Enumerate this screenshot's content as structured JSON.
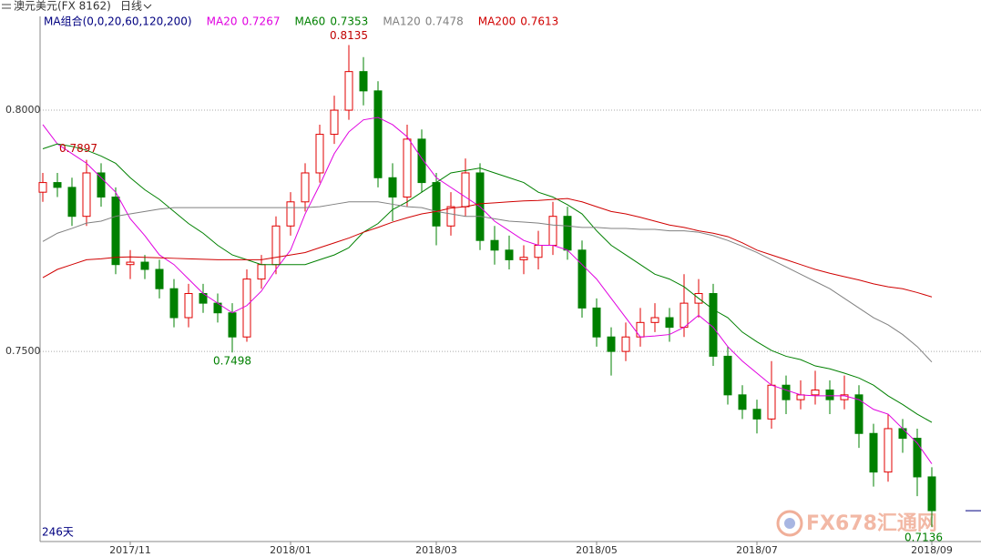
{
  "chart_data": {
    "type": "candlestick",
    "title": "澳元美元(FX 8162)",
    "period": "日线",
    "legend_title": "MA组合(0,0,20,60,120,200)",
    "bar_count_label": "246天",
    "watermark": "FX678汇通网",
    "categories": [
      null,
      null,
      null,
      null,
      null,
      null,
      "2017/11",
      null,
      null,
      null,
      null,
      null,
      null,
      null,
      null,
      null,
      null,
      "2018/01",
      null,
      null,
      null,
      null,
      null,
      null,
      null,
      null,
      null,
      "2018/03",
      null,
      null,
      null,
      null,
      null,
      null,
      null,
      null,
      null,
      null,
      "2018/05",
      null,
      null,
      null,
      null,
      null,
      null,
      null,
      null,
      null,
      null,
      "2018/07",
      null,
      null,
      null,
      null,
      null,
      null,
      null,
      null,
      null,
      null,
      null,
      "2018/09"
    ],
    "candles": {
      "up_color": "#e00000",
      "down_color": "#008000",
      "open": [
        0.783,
        0.785,
        0.784,
        0.778,
        0.787,
        0.782,
        0.768,
        0.7685,
        0.767,
        0.763,
        0.757,
        0.762,
        0.76,
        0.758,
        0.753,
        0.765,
        0.768,
        0.776,
        0.781,
        0.787,
        0.795,
        0.8,
        0.808,
        0.804,
        0.786,
        0.782,
        0.794,
        0.785,
        0.776,
        0.78,
        0.787,
        0.773,
        0.771,
        0.769,
        0.7695,
        0.772,
        0.778,
        0.771,
        0.759,
        0.753,
        0.75,
        0.753,
        0.756,
        0.757,
        0.755,
        0.76,
        0.762,
        0.749,
        0.741,
        0.738,
        0.736,
        0.743,
        0.74,
        0.741,
        0.742,
        0.74,
        0.741,
        0.733,
        0.725,
        0.734,
        0.732,
        0.724
      ],
      "high": [
        0.787,
        0.787,
        0.786,
        0.7897,
        0.789,
        0.784,
        0.771,
        0.77,
        0.769,
        0.765,
        0.764,
        0.764,
        0.762,
        0.76,
        0.767,
        0.77,
        0.778,
        0.783,
        0.789,
        0.797,
        0.803,
        0.8135,
        0.811,
        0.806,
        0.789,
        0.797,
        0.796,
        0.787,
        0.783,
        0.79,
        0.789,
        0.776,
        0.774,
        0.772,
        0.775,
        0.781,
        0.78,
        0.773,
        0.761,
        0.755,
        0.756,
        0.759,
        0.76,
        0.759,
        0.766,
        0.765,
        0.764,
        0.751,
        0.743,
        0.74,
        0.748,
        0.745,
        0.744,
        0.746,
        0.744,
        0.745,
        0.743,
        0.735,
        0.737,
        0.736,
        0.734,
        0.726
      ],
      "low": [
        0.781,
        0.782,
        0.776,
        0.776,
        0.78,
        0.766,
        0.765,
        0.765,
        0.761,
        0.755,
        0.755,
        0.758,
        0.756,
        0.7498,
        0.752,
        0.763,
        0.766,
        0.774,
        0.779,
        0.785,
        0.793,
        0.798,
        0.801,
        0.784,
        0.777,
        0.78,
        0.783,
        0.772,
        0.774,
        0.778,
        0.771,
        0.768,
        0.767,
        0.766,
        0.767,
        0.77,
        0.769,
        0.757,
        0.751,
        0.745,
        0.748,
        0.751,
        0.754,
        0.752,
        0.753,
        0.757,
        0.747,
        0.739,
        0.736,
        0.733,
        0.734,
        0.737,
        0.738,
        0.739,
        0.737,
        0.738,
        0.73,
        0.722,
        0.723,
        0.729,
        0.72,
        0.7136
      ],
      "close": [
        0.785,
        0.784,
        0.778,
        0.787,
        0.782,
        0.768,
        0.7685,
        0.767,
        0.763,
        0.757,
        0.762,
        0.76,
        0.758,
        0.753,
        0.765,
        0.768,
        0.776,
        0.781,
        0.787,
        0.795,
        0.8,
        0.808,
        0.804,
        0.786,
        0.782,
        0.794,
        0.785,
        0.776,
        0.78,
        0.787,
        0.773,
        0.771,
        0.769,
        0.7695,
        0.772,
        0.778,
        0.771,
        0.759,
        0.753,
        0.75,
        0.753,
        0.756,
        0.757,
        0.755,
        0.76,
        0.762,
        0.749,
        0.741,
        0.738,
        0.736,
        0.743,
        0.74,
        0.741,
        0.742,
        0.74,
        0.741,
        0.733,
        0.725,
        0.734,
        0.732,
        0.724,
        0.717
      ]
    },
    "series": [
      {
        "name": "MA20",
        "color": "#e000e0",
        "values": [
          0.797,
          0.793,
          0.791,
          0.789,
          0.786,
          0.783,
          0.7775,
          0.774,
          0.77,
          0.768,
          0.765,
          0.762,
          0.76,
          0.758,
          0.7595,
          0.7625,
          0.767,
          0.771,
          0.7785,
          0.7845,
          0.791,
          0.7955,
          0.798,
          0.7985,
          0.797,
          0.7945,
          0.79,
          0.786,
          0.784,
          0.782,
          0.78,
          0.777,
          0.775,
          0.773,
          0.772,
          0.772,
          0.771,
          0.768,
          0.765,
          0.761,
          0.757,
          0.753,
          0.7532,
          0.7535,
          0.755,
          0.7575,
          0.755,
          0.751,
          0.748,
          0.7455,
          0.743,
          0.742,
          0.741,
          0.7408,
          0.7408,
          0.7408,
          0.74,
          0.738,
          0.737,
          0.734,
          0.731,
          0.7267
        ]
      },
      {
        "name": "MA60",
        "color": "#008000",
        "values": [
          0.792,
          0.793,
          0.7925,
          0.7917,
          0.7905,
          0.789,
          0.786,
          0.7835,
          0.7815,
          0.779,
          0.7765,
          0.7745,
          0.772,
          0.77,
          0.769,
          0.768,
          0.768,
          0.768,
          0.768,
          0.769,
          0.77,
          0.7715,
          0.7747,
          0.7765,
          0.7794,
          0.781,
          0.783,
          0.785,
          0.787,
          0.7875,
          0.788,
          0.787,
          0.786,
          0.785,
          0.783,
          0.782,
          0.7804,
          0.7785,
          0.775,
          0.772,
          0.77,
          0.768,
          0.766,
          0.765,
          0.7634,
          0.761,
          0.7587,
          0.757,
          0.754,
          0.752,
          0.7502,
          0.749,
          0.7483,
          0.747,
          0.7464,
          0.7455,
          0.7445,
          0.743,
          0.7408,
          0.739,
          0.737,
          0.7353
        ]
      },
      {
        "name": "MA120",
        "color": "#808080",
        "values": [
          0.7728,
          0.7745,
          0.7755,
          0.7766,
          0.777,
          0.778,
          0.7785,
          0.779,
          0.7795,
          0.7798,
          0.7798,
          0.7798,
          0.7798,
          0.7798,
          0.7798,
          0.7798,
          0.7798,
          0.7798,
          0.7798,
          0.78,
          0.7805,
          0.781,
          0.781,
          0.781,
          0.7805,
          0.78,
          0.7798,
          0.779,
          0.7785,
          0.778,
          0.778,
          0.7775,
          0.777,
          0.7768,
          0.7766,
          0.7762,
          0.776,
          0.7757,
          0.7757,
          0.7755,
          0.7755,
          0.7753,
          0.7753,
          0.775,
          0.775,
          0.7747,
          0.774,
          0.773,
          0.7718,
          0.7705,
          0.769,
          0.7675,
          0.766,
          0.7645,
          0.763,
          0.761,
          0.759,
          0.757,
          0.7555,
          0.7535,
          0.751,
          0.7478
        ]
      },
      {
        "name": "MA200",
        "color": "#d00000",
        "values": [
          0.7653,
          0.767,
          0.768,
          0.769,
          0.7692,
          0.7695,
          0.7696,
          0.7695,
          0.7694,
          0.7693,
          0.7692,
          0.7691,
          0.769,
          0.769,
          0.769,
          0.769,
          0.7695,
          0.77,
          0.7705,
          0.7715,
          0.7725,
          0.7735,
          0.7747,
          0.7757,
          0.7768,
          0.7777,
          0.7785,
          0.779,
          0.7797,
          0.78,
          0.7806,
          0.7808,
          0.781,
          0.7812,
          0.7813,
          0.7815,
          0.7817,
          0.781,
          0.78,
          0.779,
          0.7785,
          0.7778,
          0.777,
          0.7762,
          0.7757,
          0.775,
          0.7745,
          0.7738,
          0.7725,
          0.771,
          0.77,
          0.769,
          0.768,
          0.767,
          0.7662,
          0.7655,
          0.7648,
          0.764,
          0.7634,
          0.763,
          0.7622,
          0.7613
        ]
      }
    ],
    "ylim": [
      0.7106,
      0.8168
    ],
    "yticks": [
      {
        "value": 0.75,
        "label": "0.7500"
      },
      {
        "value": 0.8,
        "label": "0.8000"
      }
    ],
    "grid": true
  }
}
